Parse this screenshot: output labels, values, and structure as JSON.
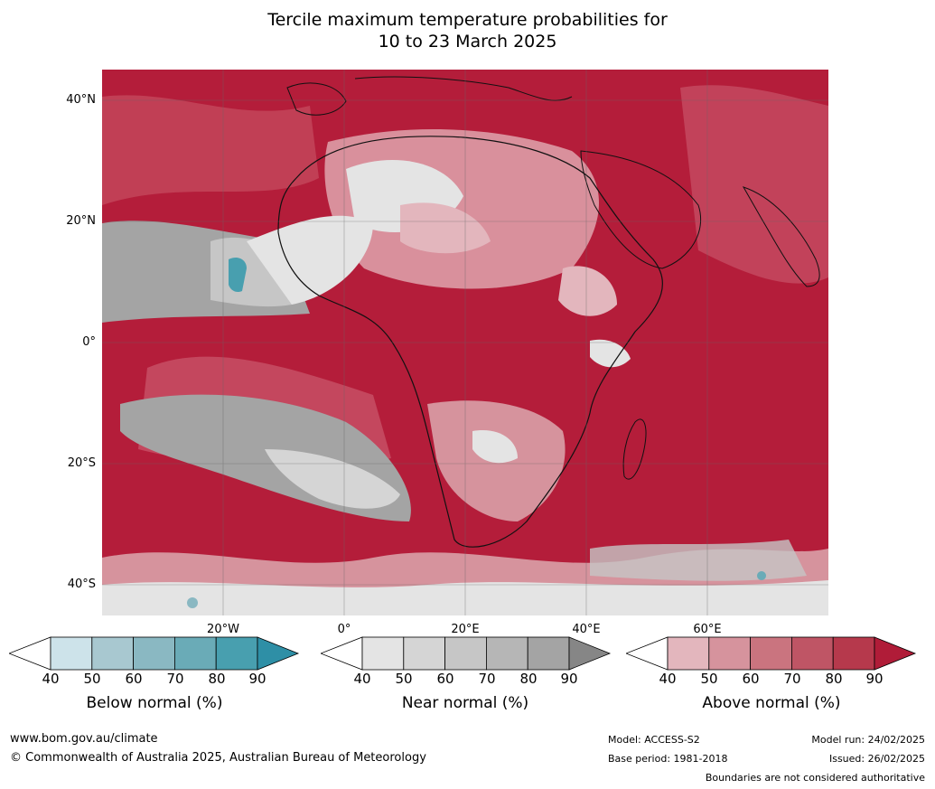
{
  "title_line1": "Tercile maximum temperature probabilities for",
  "title_line2": "10 to 23 March 2025",
  "latitude_labels": [
    "40°N",
    "20°N",
    "0°",
    "20°S",
    "40°S"
  ],
  "longitude_labels": [
    "20°W",
    "0°",
    "20°E",
    "40°E",
    "60°E"
  ],
  "colorbars": [
    {
      "label": "Below normal (%)",
      "ticks": [
        "40",
        "50",
        "60",
        "70",
        "80",
        "90"
      ],
      "colors": [
        "#cde3ea",
        "#a8c8d0",
        "#8ab8c2",
        "#6aabb7",
        "#489faf"
      ],
      "extend_color": "#2e8fa6"
    },
    {
      "label": "Near normal (%)",
      "ticks": [
        "40",
        "50",
        "60",
        "70",
        "80",
        "90"
      ],
      "colors": [
        "#e4e4e4",
        "#d5d5d5",
        "#c6c6c6",
        "#b6b6b6",
        "#a4a4a4"
      ],
      "extend_color": "#868686"
    },
    {
      "label": "Above normal (%)",
      "ticks": [
        "40",
        "50",
        "60",
        "70",
        "80",
        "90"
      ],
      "colors": [
        "#e3b6bd",
        "#d6939d",
        "#ca747f",
        "#bf5565",
        "#b6394c"
      ],
      "extend_color": "#b01c38"
    }
  ],
  "footer": {
    "website": "www.bom.gov.au/climate",
    "copyright": "© Commonwealth of Australia 2025, Australian Bureau of Meteorology",
    "model": "Model: ACCESS-S2",
    "base_period": "Base period: 1981-2018",
    "model_run": "Model run: 24/02/2025",
    "issued": "Issued: 26/02/2025",
    "disclaimer": "Boundaries are not considered authoritative"
  }
}
